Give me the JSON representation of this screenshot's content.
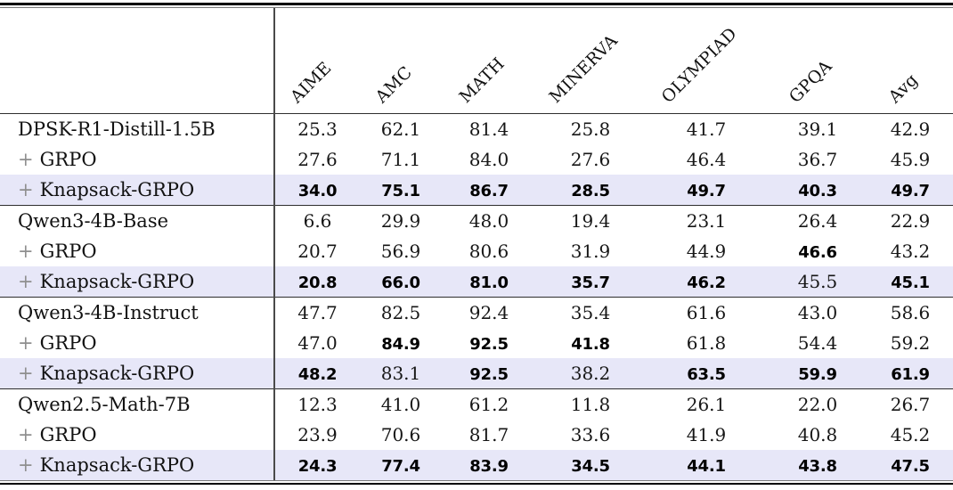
{
  "table": {
    "columns": [
      "AIME",
      "AMC",
      "MATH",
      "MINERVA",
      "OLYMPIAD",
      "GPQA",
      "Avg"
    ],
    "plus_sign": "+",
    "rows": [
      {
        "label": "DPSK-R1-Distill-1.5B",
        "plus": false,
        "highlight": false,
        "block_start": false,
        "values": [
          {
            "v": "25.3",
            "bold": false
          },
          {
            "v": "62.1",
            "bold": false
          },
          {
            "v": "81.4",
            "bold": false
          },
          {
            "v": "25.8",
            "bold": false
          },
          {
            "v": "41.7",
            "bold": false
          },
          {
            "v": "39.1",
            "bold": false
          },
          {
            "v": "42.9",
            "bold": false
          }
        ]
      },
      {
        "label": "GRPO",
        "plus": true,
        "highlight": false,
        "block_start": false,
        "values": [
          {
            "v": "27.6",
            "bold": false
          },
          {
            "v": "71.1",
            "bold": false
          },
          {
            "v": "84.0",
            "bold": false
          },
          {
            "v": "27.6",
            "bold": false
          },
          {
            "v": "46.4",
            "bold": false
          },
          {
            "v": "36.7",
            "bold": false
          },
          {
            "v": "45.9",
            "bold": false
          }
        ]
      },
      {
        "label": "Knapsack-GRPO",
        "plus": true,
        "highlight": true,
        "block_start": false,
        "values": [
          {
            "v": "34.0",
            "bold": true
          },
          {
            "v": "75.1",
            "bold": true
          },
          {
            "v": "86.7",
            "bold": true
          },
          {
            "v": "28.5",
            "bold": true
          },
          {
            "v": "49.7",
            "bold": true
          },
          {
            "v": "40.3",
            "bold": true
          },
          {
            "v": "49.7",
            "bold": true
          }
        ]
      },
      {
        "label": "Qwen3-4B-Base",
        "plus": false,
        "highlight": false,
        "block_start": true,
        "values": [
          {
            "v": "6.6",
            "bold": false
          },
          {
            "v": "29.9",
            "bold": false
          },
          {
            "v": "48.0",
            "bold": false
          },
          {
            "v": "19.4",
            "bold": false
          },
          {
            "v": "23.1",
            "bold": false
          },
          {
            "v": "26.4",
            "bold": false
          },
          {
            "v": "22.9",
            "bold": false
          }
        ]
      },
      {
        "label": "GRPO",
        "plus": true,
        "highlight": false,
        "block_start": false,
        "values": [
          {
            "v": "20.7",
            "bold": false
          },
          {
            "v": "56.9",
            "bold": false
          },
          {
            "v": "80.6",
            "bold": false
          },
          {
            "v": "31.9",
            "bold": false
          },
          {
            "v": "44.9",
            "bold": false
          },
          {
            "v": "46.6",
            "bold": true
          },
          {
            "v": "43.2",
            "bold": false
          }
        ]
      },
      {
        "label": "Knapsack-GRPO",
        "plus": true,
        "highlight": true,
        "block_start": false,
        "values": [
          {
            "v": "20.8",
            "bold": true
          },
          {
            "v": "66.0",
            "bold": true
          },
          {
            "v": "81.0",
            "bold": true
          },
          {
            "v": "35.7",
            "bold": true
          },
          {
            "v": "46.2",
            "bold": true
          },
          {
            "v": "45.5",
            "bold": false
          },
          {
            "v": "45.1",
            "bold": true
          }
        ]
      },
      {
        "label": "Qwen3-4B-Instruct",
        "plus": false,
        "highlight": false,
        "block_start": true,
        "values": [
          {
            "v": "47.7",
            "bold": false
          },
          {
            "v": "82.5",
            "bold": false
          },
          {
            "v": "92.4",
            "bold": false
          },
          {
            "v": "35.4",
            "bold": false
          },
          {
            "v": "61.6",
            "bold": false
          },
          {
            "v": "43.0",
            "bold": false
          },
          {
            "v": "58.6",
            "bold": false
          }
        ]
      },
      {
        "label": "GRPO",
        "plus": true,
        "highlight": false,
        "block_start": false,
        "values": [
          {
            "v": "47.0",
            "bold": false
          },
          {
            "v": "84.9",
            "bold": true
          },
          {
            "v": "92.5",
            "bold": true
          },
          {
            "v": "41.8",
            "bold": true
          },
          {
            "v": "61.8",
            "bold": false
          },
          {
            "v": "54.4",
            "bold": false
          },
          {
            "v": "59.2",
            "bold": false
          }
        ]
      },
      {
        "label": "Knapsack-GRPO",
        "plus": true,
        "highlight": true,
        "block_start": false,
        "values": [
          {
            "v": "48.2",
            "bold": true
          },
          {
            "v": "83.1",
            "bold": false
          },
          {
            "v": "92.5",
            "bold": true
          },
          {
            "v": "38.2",
            "bold": false
          },
          {
            "v": "63.5",
            "bold": true
          },
          {
            "v": "59.9",
            "bold": true
          },
          {
            "v": "61.9",
            "bold": true
          }
        ]
      },
      {
        "label": "Qwen2.5-Math-7B",
        "plus": false,
        "highlight": false,
        "block_start": true,
        "values": [
          {
            "v": "12.3",
            "bold": false
          },
          {
            "v": "41.0",
            "bold": false
          },
          {
            "v": "61.2",
            "bold": false
          },
          {
            "v": "11.8",
            "bold": false
          },
          {
            "v": "26.1",
            "bold": false
          },
          {
            "v": "22.0",
            "bold": false
          },
          {
            "v": "26.7",
            "bold": false
          }
        ]
      },
      {
        "label": "GRPO",
        "plus": true,
        "highlight": false,
        "block_start": false,
        "values": [
          {
            "v": "23.9",
            "bold": false
          },
          {
            "v": "70.6",
            "bold": false
          },
          {
            "v": "81.7",
            "bold": false
          },
          {
            "v": "33.6",
            "bold": false
          },
          {
            "v": "41.9",
            "bold": false
          },
          {
            "v": "40.8",
            "bold": false
          },
          {
            "v": "45.2",
            "bold": false
          }
        ]
      },
      {
        "label": "Knapsack-GRPO",
        "plus": true,
        "highlight": true,
        "block_start": false,
        "values": [
          {
            "v": "24.3",
            "bold": true
          },
          {
            "v": "77.4",
            "bold": true
          },
          {
            "v": "83.9",
            "bold": true
          },
          {
            "v": "34.5",
            "bold": true
          },
          {
            "v": "44.1",
            "bold": true
          },
          {
            "v": "43.8",
            "bold": true
          },
          {
            "v": "47.5",
            "bold": true
          }
        ]
      }
    ]
  },
  "colors": {
    "highlight_row": "#e7e7f8",
    "plus_sign": "#8f8f8f",
    "rule": "#000000"
  }
}
